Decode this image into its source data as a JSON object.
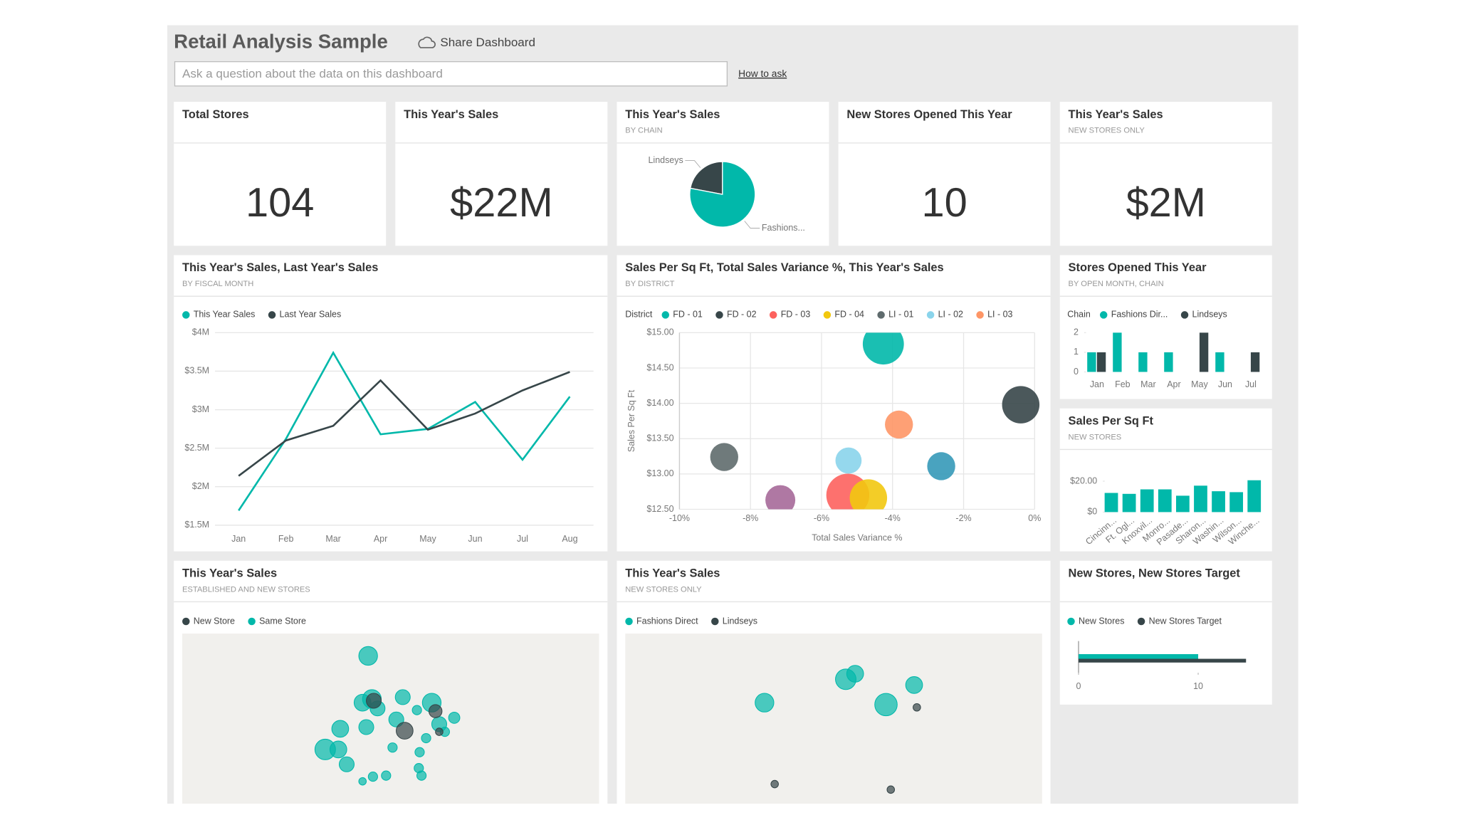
{
  "header": {
    "title": "Retail Analysis Sample",
    "share": "Share Dashboard",
    "search_placeholder": "Ask a question about the data on this dashboard",
    "how_to_ask": "How to ask"
  },
  "tiles": {
    "total_stores": {
      "title": "Total Stores",
      "value": "104"
    },
    "sales": {
      "title": "This Year's Sales",
      "value": "$22M"
    },
    "sales_by_chain": {
      "title": "This Year's Sales",
      "subtitle": "BY CHAIN",
      "chart_data": {
        "type": "pie",
        "categories": [
          "Lindseys",
          "Fashions..."
        ],
        "values": [
          22,
          78
        ],
        "colors": [
          "#374649",
          "#01b8aa"
        ]
      }
    },
    "new_stores_opened": {
      "title": "New Stores Opened This Year",
      "value": "10"
    },
    "new_store_sales": {
      "title": "This Year's Sales",
      "subtitle": "NEW STORES ONLY",
      "value": "$2M"
    },
    "sales_by_month": {
      "title": "This Year's Sales, Last Year's Sales",
      "subtitle": "BY FISCAL MONTH",
      "chart_data": {
        "type": "line",
        "categories": [
          "Jan",
          "Feb",
          "Mar",
          "Apr",
          "May",
          "Jun",
          "Jul",
          "Aug"
        ],
        "series": [
          {
            "name": "This Year Sales",
            "color": "#01b8aa",
            "values": [
              1.69,
              2.62,
              3.74,
              2.68,
              2.75,
              3.1,
              2.35,
              3.17
            ]
          },
          {
            "name": "Last Year Sales",
            "color": "#374649",
            "values": [
              2.14,
              2.6,
              2.79,
              3.38,
              2.74,
              2.95,
              3.25,
              3.49
            ]
          }
        ],
        "ylim": [
          1.5,
          4
        ],
        "yticks": [
          {
            "value": 1.5,
            "label": "$1.5M"
          },
          {
            "value": 2,
            "label": "$2M"
          },
          {
            "value": 2.5,
            "label": "$2.5M"
          },
          {
            "value": 3,
            "label": "$3M"
          },
          {
            "value": 3.5,
            "label": "$3.5M"
          },
          {
            "value": 4,
            "label": "$4M"
          }
        ],
        "grid": true,
        "legend": "top"
      }
    },
    "district": {
      "title": "Sales Per Sq Ft, Total Sales Variance %, This Year's Sales",
      "subtitle": "BY DISTRICT",
      "chart_data": {
        "type": "scatter",
        "legend_title": "District",
        "series": [
          {
            "name": "FD - 01",
            "color": "#01b8aa",
            "x": [
              -4.26
            ],
            "values": [
              14.84
            ],
            "sizes": [
              22
            ]
          },
          {
            "name": "FD - 02",
            "color": "#374649",
            "x": [
              -0.39
            ],
            "values": [
              13.98
            ],
            "sizes": [
              20
            ]
          },
          {
            "name": "FD - 03",
            "color": "#fd625e",
            "x": [
              -5.26
            ],
            "values": [
              12.7
            ],
            "sizes": [
              23
            ]
          },
          {
            "name": "FD - 04",
            "color": "#f2c80f",
            "x": [
              -4.68
            ],
            "values": [
              12.66
            ],
            "sizes": [
              20
            ]
          },
          {
            "name": "LI - 01",
            "color": "#5f6b6d",
            "x": [
              -8.74
            ],
            "values": [
              13.24
            ],
            "sizes": [
              15
            ]
          },
          {
            "name": "LI - 02",
            "color": "#8ad4eb",
            "x": [
              -5.24
            ],
            "values": [
              13.19
            ],
            "sizes": [
              14
            ]
          },
          {
            "name": "LI - 03",
            "color": "#fe9666",
            "x": [
              -3.82
            ],
            "values": [
              13.7
            ],
            "sizes": [
              15
            ]
          },
          {
            "name": null,
            "color": "#a66999",
            "x": [
              -7.16
            ],
            "values": [
              12.63
            ],
            "sizes": [
              16
            ]
          },
          {
            "name": null,
            "color": "#3599b8",
            "x": [
              -2.63
            ],
            "values": [
              13.11
            ],
            "sizes": [
              15
            ]
          }
        ],
        "xlim": [
          -10,
          0
        ],
        "xticks": [
          {
            "value": -10,
            "label": "-10%"
          },
          {
            "value": -8,
            "label": "-8%"
          },
          {
            "value": -6,
            "label": "-6%"
          },
          {
            "value": -4,
            "label": "-4%"
          },
          {
            "value": -2,
            "label": "-2%"
          },
          {
            "value": 0,
            "label": "0%"
          }
        ],
        "ylim": [
          12.5,
          15
        ],
        "yticks": [
          {
            "value": 12.5,
            "label": "$12.50"
          },
          {
            "value": 13,
            "label": "$13.00"
          },
          {
            "value": 13.5,
            "label": "$13.50"
          },
          {
            "value": 14,
            "label": "$14.00"
          },
          {
            "value": 14.5,
            "label": "$14.50"
          },
          {
            "value": 15,
            "label": "$15.00"
          }
        ],
        "xlabel": "Total Sales Variance %",
        "ylabel": "Sales Per Sq Ft",
        "grid": true
      }
    },
    "stores_opened": {
      "title": "Stores Opened This Year",
      "subtitle": "BY OPEN MONTH, CHAIN",
      "chart_data": {
        "type": "bar",
        "legend_title": "Chain",
        "categories": [
          "Jan",
          "Feb",
          "Mar",
          "Apr",
          "May",
          "Jun",
          "Jul"
        ],
        "series": [
          {
            "name": "Fashions Dir...",
            "color": "#01b8aa",
            "values": [
              1,
              2,
              1,
              1,
              0,
              1,
              0
            ]
          },
          {
            "name": "Lindseys",
            "color": "#374649",
            "values": [
              1,
              0,
              0,
              0,
              2,
              0,
              1
            ]
          }
        ],
        "ylim": [
          0,
          2
        ],
        "yticks": [
          0,
          1,
          2
        ]
      }
    },
    "sales_per_sqft": {
      "title": "Sales Per Sq Ft",
      "subtitle": "NEW STORES",
      "chart_data": {
        "type": "bar",
        "categories": [
          "Cincinn...",
          "Ft. Ogl...",
          "Knoxvil...",
          "Monro...",
          "Pasade...",
          "Sharon...",
          "Washin...",
          "Wilson...",
          "Winche..."
        ],
        "values": [
          12.4,
          11.8,
          14.7,
          14.7,
          10.6,
          17.1,
          13.5,
          12.9,
          20.6
        ],
        "color": "#01b8aa",
        "ylim": [
          0,
          26
        ],
        "yticks": [
          {
            "value": 0,
            "label": "$0"
          },
          {
            "value": 20,
            "label": "$20.00"
          }
        ]
      }
    },
    "established_new": {
      "title": "This Year's Sales",
      "subtitle": "ESTABLISHED AND NEW STORES",
      "chart_data": {
        "type": "map",
        "lonlim": [
          -88,
          -68
        ],
        "latlim": [
          36,
          44
        ],
        "series": [
          {
            "name": "New Store",
            "color": "#374649",
            "lon": [
              -77.33,
              -75.85,
              -78.81,
              -75.67
            ],
            "lat": [
              39.43,
              40.35,
              40.84,
              39.38
            ],
            "sizes": [
              9,
              7,
              8,
              4
            ]
          },
          {
            "name": "Same Store",
            "color": "#01b8aa",
            "lon": [
              -79.08,
              -79.35,
              -78.9,
              -78.63,
              -77.42,
              -76.03,
              -77.73,
              -80.42,
              -79.17,
              -81.14,
              -80.51,
              -80.11,
              -77.91,
              -78.22,
              -78.85,
              -79.35,
              -76.65,
              -76.52,
              -76.61,
              -76.3,
              -75.67,
              -74.95,
              -76.74,
              -75.4
            ],
            "lat": [
              42.95,
              40.75,
              40.92,
              40.48,
              41.01,
              40.75,
              39.96,
              39.52,
              39.6,
              38.55,
              38.55,
              37.85,
              38.64,
              37.32,
              37.27,
              37.05,
              37.67,
              37.32,
              38.42,
              39.08,
              39.74,
              40.04,
              40.4,
              39.38
            ],
            "sizes": [
              10,
              9,
              10,
              8,
              8,
              10,
              8,
              9,
              8,
              11,
              9,
              8,
              5,
              5,
              5,
              4,
              5,
              5,
              5,
              5,
              8,
              6,
              5,
              5
            ]
          }
        ]
      }
    },
    "new_only_map": {
      "title": "This Year's Sales",
      "subtitle": "NEW STORES ONLY",
      "chart_data": {
        "type": "map",
        "lonlim": [
          -88,
          -68
        ],
        "latlim": [
          36,
          44
        ],
        "series": [
          {
            "name": "Fashions Direct",
            "color": "#01b8aa",
            "lon": [
              -81.32,
              -77.42,
              -76.97,
              -74.14,
              -75.49
            ],
            "lat": [
              40.75,
              41.85,
              42.11,
              41.58,
              40.66
            ],
            "sizes": [
              10,
              11,
              9,
              9,
              12
            ]
          },
          {
            "name": "Lindseys",
            "color": "#374649",
            "lon": [
              -74.01,
              -80.83,
              -75.26
            ],
            "lat": [
              40.53,
              36.92,
              36.66
            ],
            "sizes": [
              4,
              4,
              4
            ]
          }
        ]
      }
    },
    "new_vs_target": {
      "title": "New Stores, New Stores Target",
      "chart_data": {
        "type": "bar",
        "orientation": "horizontal",
        "series": [
          {
            "name": "New Stores",
            "color": "#01b8aa",
            "values": [
              10
            ]
          },
          {
            "name": "New Stores Target",
            "color": "#374649",
            "values": [
              14
            ]
          }
        ],
        "xlim": [
          0,
          15
        ],
        "xticks": [
          0,
          10
        ]
      }
    }
  }
}
